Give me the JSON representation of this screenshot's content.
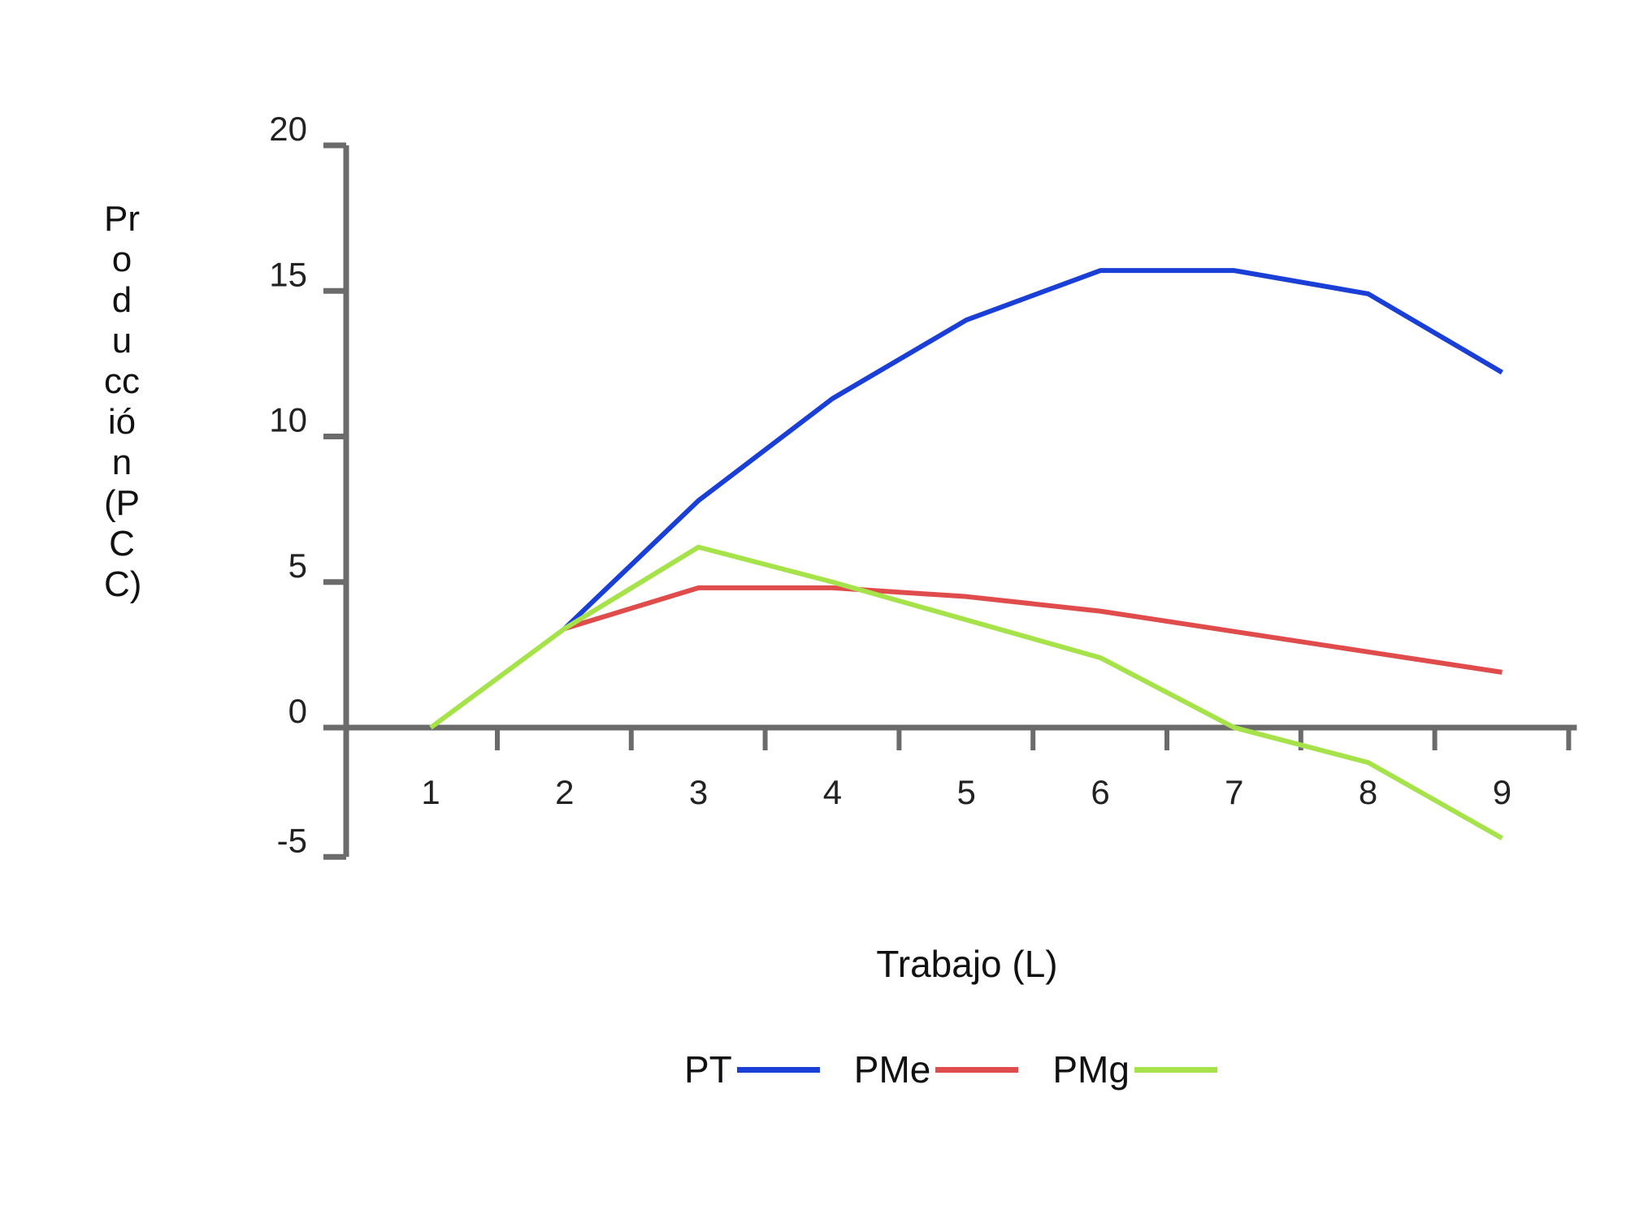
{
  "chart_data": {
    "type": "line",
    "xlabel": "Trabajo (L)",
    "ylabel": "Producción (PCC)",
    "x": [
      1,
      2,
      3,
      4,
      5,
      6,
      7,
      8,
      9
    ],
    "x_tick_labels": [
      "1",
      "2",
      "3",
      "4",
      "5",
      "6",
      "7",
      "8",
      "9"
    ],
    "y_ticks": [
      -5,
      0,
      5,
      10,
      15,
      20
    ],
    "y_tick_labels": [
      "-5",
      "0",
      "5",
      "10",
      "15",
      "20"
    ],
    "ylim": [
      -5,
      20
    ],
    "grid": false,
    "legend_placement": "bottom",
    "series": [
      {
        "name": "PT",
        "color": "#1a3fd6",
        "x": [
          2,
          3,
          4,
          5,
          6,
          7,
          8,
          9
        ],
        "values": [
          3.4,
          7.8,
          11.3,
          14.0,
          15.7,
          15.7,
          14.9,
          12.2
        ]
      },
      {
        "name": "PMe",
        "color": "#e04b4b",
        "x": [
          2,
          3,
          4,
          5,
          6,
          7,
          8,
          9
        ],
        "values": [
          3.4,
          4.8,
          4.8,
          4.5,
          4.0,
          3.3,
          2.6,
          1.9
        ]
      },
      {
        "name": "PMg",
        "color": "#a6e34a",
        "x": [
          1,
          2,
          3,
          4,
          5,
          6,
          7,
          8,
          9
        ],
        "values": [
          0,
          3.4,
          6.2,
          5.0,
          3.7,
          2.4,
          0,
          -1.2,
          -3.8
        ]
      }
    ]
  }
}
